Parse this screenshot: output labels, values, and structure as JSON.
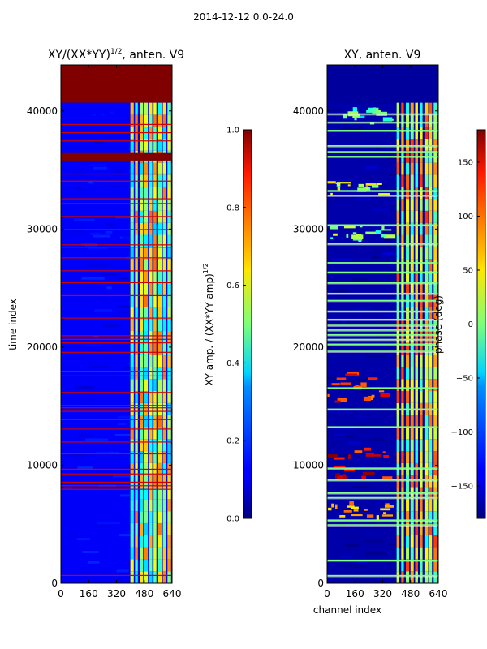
{
  "figure": {
    "suptitle": "2014-12-12 0.0-24.0"
  },
  "chart_data": [
    {
      "type": "heatmap",
      "title_main": "XY/(XX*YY)",
      "title_sup": "1/2",
      "title_tail": ", anten. V9",
      "xlabel": "",
      "ylabel": "time index",
      "xlim": [
        0,
        640
      ],
      "ylim": [
        0,
        43900
      ],
      "xticks": [
        "0",
        "160",
        "320",
        "480",
        "640"
      ],
      "xtick_values": [
        0,
        160,
        320,
        480,
        640
      ],
      "yticks": [
        "0",
        "10000",
        "20000",
        "30000",
        "40000"
      ],
      "ytick_values": [
        0,
        10000,
        20000,
        30000,
        40000
      ],
      "colormap": "jet",
      "color_range": [
        0.0,
        1.0
      ],
      "colorbar": {
        "label_main": "XY amp. / (XX*YY amp)",
        "label_sup": "1/2",
        "ticks": [
          "0.0",
          "0.2",
          "0.4",
          "0.6",
          "0.8",
          "1.0"
        ],
        "tick_values": [
          0.0,
          0.2,
          0.4,
          0.6,
          0.8,
          1.0
        ]
      },
      "background_value": 0.12,
      "flagged_rows": [
        {
          "t0": 40700,
          "t1": 43900,
          "value": 1.0
        },
        {
          "t0": 35800,
          "t1": 36500,
          "value": 1.0
        }
      ],
      "thin_lines": [
        38900,
        38200,
        37500,
        34700,
        34100,
        32600,
        32200,
        31100,
        30000,
        28700,
        28500,
        27600,
        26500,
        25500,
        24400,
        22500,
        21000,
        20700,
        20400,
        19600,
        18000,
        17600,
        16200,
        15100,
        14900,
        14600,
        13900,
        13100,
        12000,
        11000,
        9700,
        9300,
        8600,
        8300,
        8000,
        700
      ],
      "active_band": {
        "c0": 400,
        "c1": 640,
        "value": 0.55
      }
    },
    {
      "type": "heatmap",
      "title_main": "XY, anten. V9",
      "xlabel": "channel index",
      "ylabel": "",
      "xlim": [
        0,
        640
      ],
      "ylim": [
        0,
        43900
      ],
      "xticks": [
        "0",
        "160",
        "320",
        "480",
        "640"
      ],
      "xtick_values": [
        0,
        160,
        320,
        480,
        640
      ],
      "yticks": [
        "0",
        "10000",
        "20000",
        "30000",
        "40000"
      ],
      "ytick_values": [
        0,
        10000,
        20000,
        30000,
        40000
      ],
      "colormap": "jet",
      "color_range": [
        -180,
        180
      ],
      "colorbar": {
        "label": "phase (deg)",
        "ticks": [
          "−150",
          "−100",
          "−50",
          "0",
          "50",
          "100",
          "150"
        ],
        "tick_values": [
          -150,
          -100,
          -50,
          0,
          50,
          100,
          150
        ]
      },
      "background_value": -165,
      "flagged_rows": [
        {
          "t0": 40700,
          "t1": 43900,
          "value": -170
        }
      ],
      "bright_lines": [
        39800,
        39100,
        38400,
        37100,
        36600,
        36200,
        33300,
        32900,
        30400,
        28800,
        27200,
        26400,
        25500,
        24600,
        24000,
        23100,
        22400,
        21900,
        21500,
        21100,
        20700,
        20300,
        19700,
        16600,
        14800,
        13300,
        9800,
        8800,
        7700,
        7300,
        5400,
        5000,
        2000,
        700
      ],
      "active_band": {
        "c0": 400,
        "c1": 640,
        "value": 40
      },
      "patches": [
        {
          "t0": 29200,
          "t1": 30500,
          "c0": 0,
          "c1": 400,
          "value": 0
        },
        {
          "t0": 33000,
          "t1": 34200,
          "c0": 0,
          "c1": 400,
          "value": 20
        },
        {
          "t0": 5600,
          "t1": 7000,
          "c0": 0,
          "c1": 400,
          "value": 60
        },
        {
          "t0": 39000,
          "t1": 40600,
          "c0": 0,
          "c1": 400,
          "value": -20
        },
        {
          "t0": 15000,
          "t1": 18000,
          "c0": 0,
          "c1": 400,
          "value": 120
        },
        {
          "t0": 9000,
          "t1": 11500,
          "c0": 0,
          "c1": 400,
          "value": 140
        }
      ]
    }
  ]
}
